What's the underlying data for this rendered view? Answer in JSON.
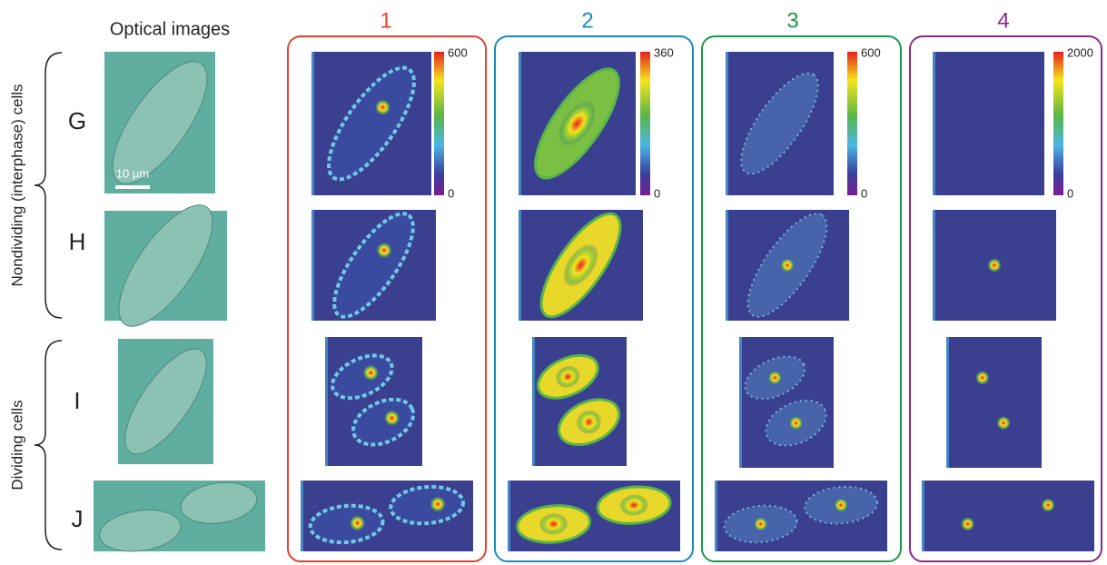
{
  "header": {
    "title": "Optical images"
  },
  "columns": [
    {
      "label": "1",
      "colorbar": {
        "max": 600,
        "min": 0
      }
    },
    {
      "label": "2",
      "colorbar": {
        "max": 360,
        "min": 0
      }
    },
    {
      "label": "3",
      "colorbar": {
        "max": 600,
        "min": 0
      }
    },
    {
      "label": "4",
      "colorbar": {
        "max": 2000,
        "min": 0
      }
    }
  ],
  "rows": [
    {
      "label": "G"
    },
    {
      "label": "H"
    },
    {
      "label": "I"
    },
    {
      "label": "J"
    }
  ],
  "groups": [
    {
      "label": "Nondividing (interphase) cells"
    },
    {
      "label": "Dividing cells"
    }
  ],
  "scale_bar": {
    "label": "10 µm"
  }
}
